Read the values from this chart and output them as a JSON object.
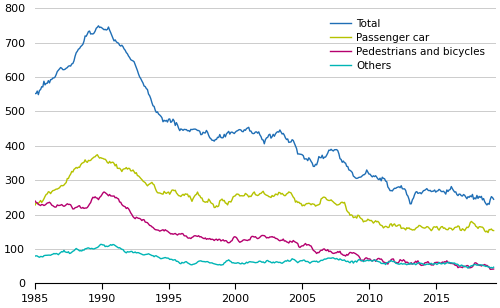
{
  "xlim": [
    1985.0,
    2019.5
  ],
  "ylim": [
    0,
    800
  ],
  "yticks": [
    0,
    100,
    200,
    300,
    400,
    500,
    600,
    700,
    800
  ],
  "xticks": [
    1985,
    1990,
    1995,
    2000,
    2005,
    2010,
    2015
  ],
  "colors": {
    "Total": "#1f6eb5",
    "Passenger car": "#b5c200",
    "Pedestrians and bicycles": "#b5006e",
    "Others": "#00b5b5"
  },
  "background": "#ffffff",
  "grid_color": "#cccccc",
  "total_keys": [
    [
      1985.0,
      550
    ],
    [
      1986.0,
      590
    ],
    [
      1987.0,
      620
    ],
    [
      1988.0,
      660
    ],
    [
      1989.0,
      720
    ],
    [
      1990.0,
      735
    ],
    [
      1991.0,
      710
    ],
    [
      1992.0,
      660
    ],
    [
      1993.0,
      590
    ],
    [
      1994.0,
      510
    ],
    [
      1995.0,
      470
    ],
    [
      1996.0,
      450
    ],
    [
      1997.0,
      440
    ],
    [
      1998.0,
      430
    ],
    [
      1999.0,
      420
    ],
    [
      2000.0,
      440
    ],
    [
      2001.0,
      435
    ],
    [
      2002.0,
      430
    ],
    [
      2003.0,
      430
    ],
    [
      2004.0,
      415
    ],
    [
      2005.0,
      380
    ],
    [
      2006.0,
      350
    ],
    [
      2007.0,
      380
    ],
    [
      2008.0,
      360
    ],
    [
      2009.0,
      310
    ],
    [
      2010.0,
      320
    ],
    [
      2011.0,
      290
    ],
    [
      2012.0,
      275
    ],
    [
      2013.0,
      265
    ],
    [
      2014.0,
      265
    ],
    [
      2015.0,
      275
    ],
    [
      2016.0,
      265
    ],
    [
      2017.0,
      260
    ],
    [
      2018.0,
      250
    ],
    [
      2019.5,
      230
    ]
  ],
  "passenger_keys": [
    [
      1985.0,
      235
    ],
    [
      1986.0,
      260
    ],
    [
      1987.0,
      290
    ],
    [
      1988.0,
      330
    ],
    [
      1989.0,
      355
    ],
    [
      1990.0,
      370
    ],
    [
      1991.0,
      345
    ],
    [
      1992.0,
      330
    ],
    [
      1993.0,
      300
    ],
    [
      1994.0,
      275
    ],
    [
      1995.0,
      265
    ],
    [
      1996.0,
      260
    ],
    [
      1997.0,
      250
    ],
    [
      1998.0,
      235
    ],
    [
      1999.0,
      225
    ],
    [
      2000.0,
      250
    ],
    [
      2001.0,
      255
    ],
    [
      2002.0,
      260
    ],
    [
      2003.0,
      260
    ],
    [
      2004.0,
      255
    ],
    [
      2005.0,
      240
    ],
    [
      2006.0,
      230
    ],
    [
      2007.0,
      250
    ],
    [
      2008.0,
      230
    ],
    [
      2009.0,
      195
    ],
    [
      2010.0,
      185
    ],
    [
      2011.0,
      175
    ],
    [
      2012.0,
      165
    ],
    [
      2013.0,
      155
    ],
    [
      2014.0,
      155
    ],
    [
      2015.0,
      160
    ],
    [
      2016.0,
      155
    ],
    [
      2017.0,
      155
    ],
    [
      2018.0,
      160
    ],
    [
      2019.5,
      145
    ]
  ],
  "ped_keys": [
    [
      1985.0,
      235
    ],
    [
      1986.0,
      230
    ],
    [
      1987.0,
      228
    ],
    [
      1988.0,
      228
    ],
    [
      1989.0,
      230
    ],
    [
      1990.0,
      258
    ],
    [
      1991.0,
      245
    ],
    [
      1992.0,
      215
    ],
    [
      1993.0,
      185
    ],
    [
      1994.0,
      158
    ],
    [
      1995.0,
      150
    ],
    [
      1996.0,
      140
    ],
    [
      1997.0,
      135
    ],
    [
      1998.0,
      130
    ],
    [
      1999.0,
      125
    ],
    [
      2000.0,
      128
    ],
    [
      2001.0,
      130
    ],
    [
      2002.0,
      132
    ],
    [
      2003.0,
      128
    ],
    [
      2004.0,
      120
    ],
    [
      2005.0,
      105
    ],
    [
      2006.0,
      95
    ],
    [
      2007.0,
      90
    ],
    [
      2008.0,
      85
    ],
    [
      2009.0,
      80
    ],
    [
      2010.0,
      72
    ],
    [
      2011.0,
      68
    ],
    [
      2012.0,
      65
    ],
    [
      2013.0,
      63
    ],
    [
      2014.0,
      60
    ],
    [
      2015.0,
      60
    ],
    [
      2016.0,
      58
    ],
    [
      2017.0,
      55
    ],
    [
      2018.0,
      52
    ],
    [
      2019.5,
      40
    ]
  ],
  "others_keys": [
    [
      1985.0,
      80
    ],
    [
      1986.0,
      82
    ],
    [
      1987.0,
      88
    ],
    [
      1988.0,
      95
    ],
    [
      1989.0,
      100
    ],
    [
      1990.0,
      108
    ],
    [
      1991.0,
      105
    ],
    [
      1992.0,
      95
    ],
    [
      1993.0,
      85
    ],
    [
      1994.0,
      78
    ],
    [
      1995.0,
      70
    ],
    [
      1996.0,
      62
    ],
    [
      1997.0,
      60
    ],
    [
      1998.0,
      60
    ],
    [
      1999.0,
      58
    ],
    [
      2000.0,
      60
    ],
    [
      2001.0,
      62
    ],
    [
      2002.0,
      62
    ],
    [
      2003.0,
      62
    ],
    [
      2004.0,
      62
    ],
    [
      2005.0,
      65
    ],
    [
      2006.0,
      63
    ],
    [
      2007.0,
      72
    ],
    [
      2008.0,
      68
    ],
    [
      2009.0,
      60
    ],
    [
      2010.0,
      62
    ],
    [
      2011.0,
      58
    ],
    [
      2012.0,
      58
    ],
    [
      2013.0,
      57
    ],
    [
      2014.0,
      56
    ],
    [
      2015.0,
      58
    ],
    [
      2016.0,
      57
    ],
    [
      2017.0,
      55
    ],
    [
      2018.0,
      52
    ],
    [
      2019.5,
      48
    ]
  ]
}
